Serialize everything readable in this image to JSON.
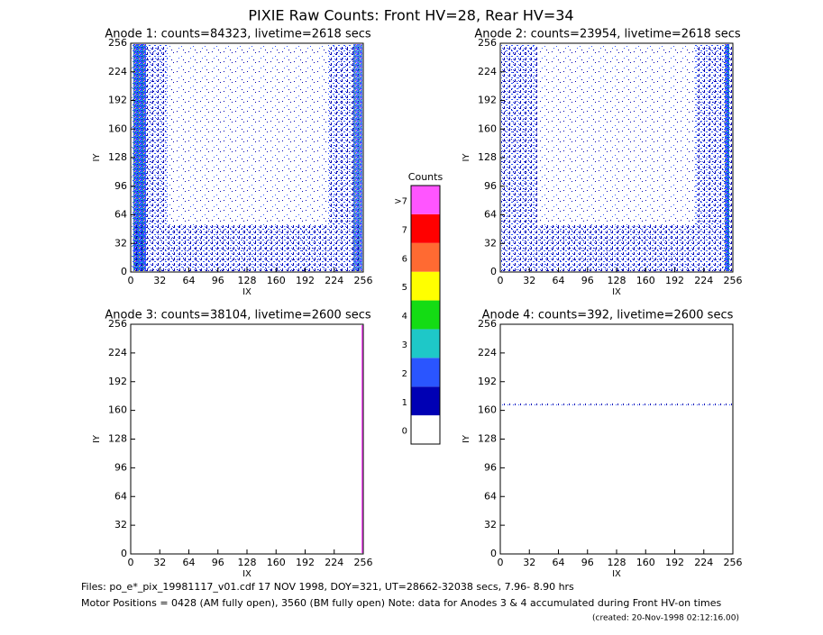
{
  "title": "PIXIE Raw Counts:  Front HV=28, Rear HV=34",
  "chart_data": [
    {
      "type": "heatmap",
      "title": "Anode 1: counts=84323, livetime=2618 secs",
      "xlabel": "IX",
      "ylabel": "IY",
      "xlim": [
        0,
        256
      ],
      "ylim": [
        0,
        256
      ],
      "xticks": [
        0,
        32,
        64,
        96,
        128,
        160,
        192,
        224,
        256
      ],
      "yticks": [
        0,
        32,
        64,
        96,
        128,
        160,
        192,
        224,
        256
      ]
    },
    {
      "type": "heatmap",
      "title": "Anode 2: counts=23954, livetime=2618 secs",
      "xlabel": "IX",
      "ylabel": "IY",
      "xlim": [
        0,
        256
      ],
      "ylim": [
        0,
        256
      ],
      "xticks": [
        0,
        32,
        64,
        96,
        128,
        160,
        192,
        224,
        256
      ],
      "yticks": [
        0,
        32,
        64,
        96,
        128,
        160,
        192,
        224,
        256
      ]
    },
    {
      "type": "heatmap",
      "title": "Anode 3: counts=38104, livetime=2600 secs",
      "xlabel": "IX",
      "ylabel": "IY",
      "xlim": [
        0,
        256
      ],
      "ylim": [
        0,
        256
      ],
      "xticks": [
        0,
        32,
        64,
        96,
        128,
        160,
        192,
        224,
        256
      ],
      "yticks": [
        0,
        32,
        64,
        96,
        128,
        160,
        192,
        224,
        256
      ]
    },
    {
      "type": "heatmap",
      "title": "Anode 4: counts=392, livetime=2600 secs",
      "xlabel": "IX",
      "ylabel": "IY",
      "xlim": [
        0,
        256
      ],
      "ylim": [
        0,
        256
      ],
      "xticks": [
        0,
        32,
        64,
        96,
        128,
        160,
        192,
        224,
        256
      ],
      "yticks": [
        0,
        32,
        64,
        96,
        128,
        160,
        192,
        224,
        256
      ]
    }
  ],
  "colorbar": {
    "title": "Counts",
    "levels": [
      {
        "label": "0",
        "color": "#ffffff"
      },
      {
        "label": "1",
        "color": "#0000b4"
      },
      {
        "label": "2",
        "color": "#2a55ff"
      },
      {
        "label": "3",
        "color": "#1ec8c8"
      },
      {
        "label": "4",
        "color": "#14dc14"
      },
      {
        "label": "5",
        "color": "#ffff00"
      },
      {
        "label": "6",
        "color": "#ff6a32"
      },
      {
        "label": "7",
        "color": "#ff0000"
      },
      {
        "label": ">7",
        "color": "#ff55ff"
      }
    ]
  },
  "footer": [
    "Files: po_e*_pix_19981117_v01.cdf    17 NOV 1998, DOY=321, UT=28662-32038 secs,  7.96- 8.90 hrs",
    "Motor Positions = 0428 (AM fully open), 3560 (BM fully open)    Note: data for Anodes 3 & 4 accumulated during Front HV-on times",
    "(created: 20-Nov-1998 02:12:16.00)"
  ]
}
